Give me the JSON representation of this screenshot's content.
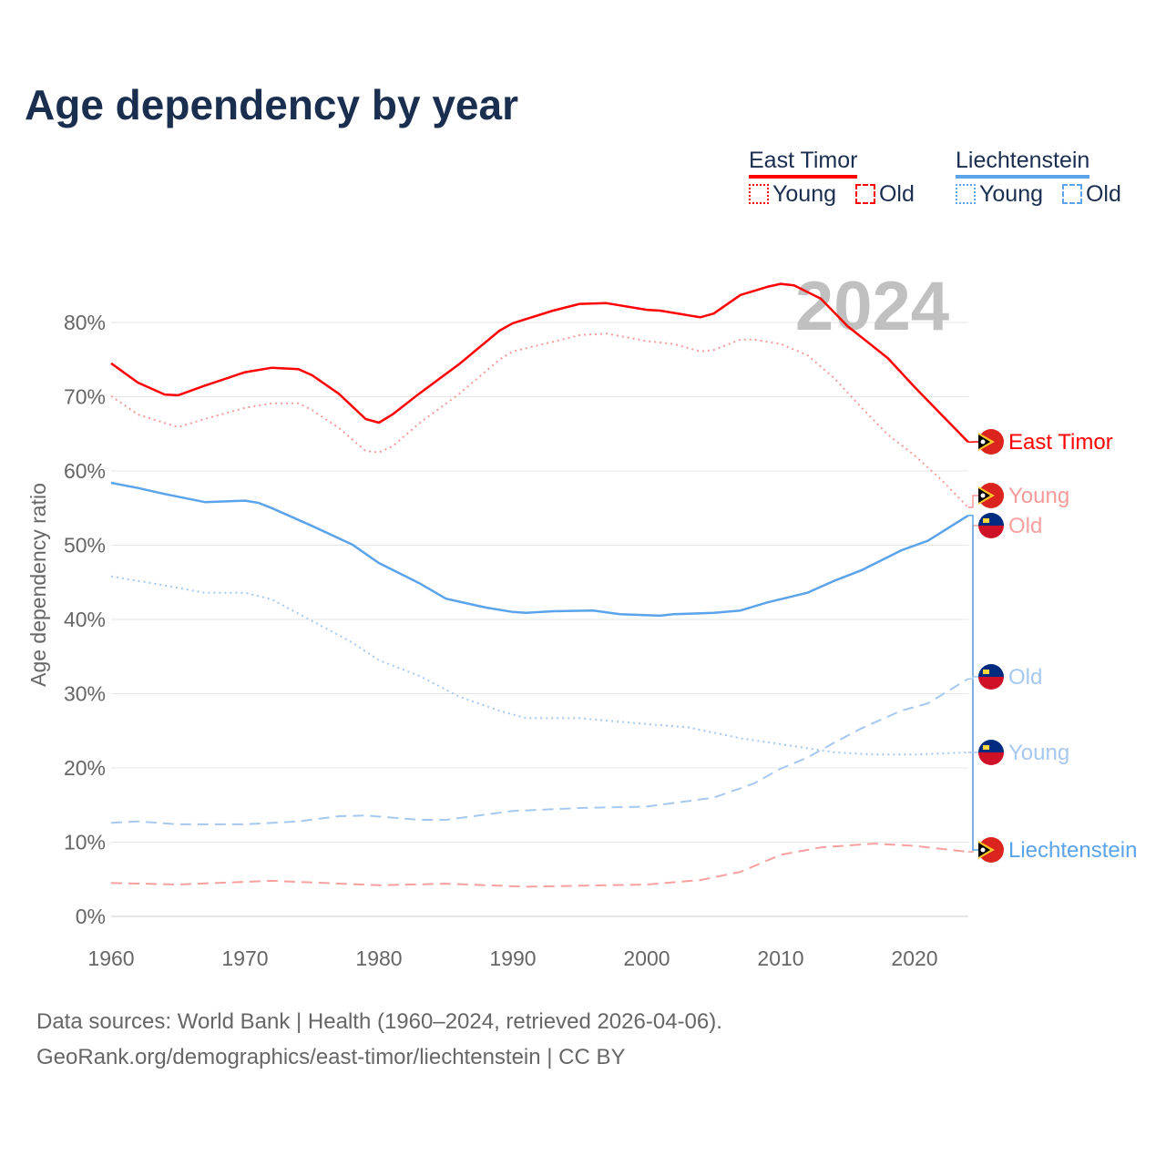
{
  "title": "Age dependency by year",
  "legend": {
    "groups": [
      {
        "name": "East Timor",
        "color": "#ff0000",
        "young": "Young",
        "old": "Old"
      },
      {
        "name": "Liechtenstein",
        "color": "#5ba3ea",
        "young": "Young",
        "old": "Old"
      }
    ]
  },
  "footer": {
    "line1": "Data sources: World Bank | Health (1960–2024, retrieved 2026-04-06).",
    "line2": "GeoRank.org/demographics/east-timor/liechtenstein | CC BY"
  },
  "chart_data": {
    "type": "line",
    "title": "Age dependency by year",
    "xlabel": "",
    "ylabel": "Age dependency ratio",
    "year_watermark": "2024",
    "xlim": [
      1960,
      2024
    ],
    "ylim": [
      0,
      85
    ],
    "x_ticks": [
      "1960",
      "1970",
      "1980",
      "1990",
      "2000",
      "2010",
      "2020"
    ],
    "y_ticks": [
      "0%",
      "10%",
      "20%",
      "30%",
      "40%",
      "50%",
      "60%",
      "70%",
      "80%"
    ],
    "grid": true,
    "series": [
      {
        "name": "East Timor",
        "label": "East Timor",
        "color": "#ff0000",
        "style": "solid",
        "width": 2.5,
        "points": [
          [
            1960,
            74.5
          ],
          [
            1962,
            71.9
          ],
          [
            1964,
            70.3
          ],
          [
            1965,
            70.2
          ],
          [
            1967,
            71.5
          ],
          [
            1970,
            73.3
          ],
          [
            1972,
            73.9
          ],
          [
            1974,
            73.7
          ],
          [
            1975,
            72.9
          ],
          [
            1977,
            70.4
          ],
          [
            1979,
            67
          ],
          [
            1980,
            66.5
          ],
          [
            1981,
            67.6
          ],
          [
            1983,
            70.4
          ],
          [
            1986,
            74.4
          ],
          [
            1989,
            78.9
          ],
          [
            1990,
            79.9
          ],
          [
            1993,
            81.6
          ],
          [
            1995,
            82.5
          ],
          [
            1997,
            82.6
          ],
          [
            2000,
            81.7
          ],
          [
            2001,
            81.6
          ],
          [
            2004,
            80.7
          ],
          [
            2005,
            81.2
          ],
          [
            2007,
            83.7
          ],
          [
            2009,
            84.8
          ],
          [
            2010,
            85.2
          ],
          [
            2011,
            85.0
          ],
          [
            2013,
            83.2
          ],
          [
            2015,
            79.5
          ],
          [
            2018,
            75.2
          ],
          [
            2020,
            71.3
          ],
          [
            2022,
            67.6
          ],
          [
            2024,
            63.9
          ]
        ]
      },
      {
        "name": "East Timor Young",
        "label": "Young",
        "color": "#f59a9a",
        "style": "dotted",
        "width": 2,
        "points": [
          [
            1960,
            70.1
          ],
          [
            1962,
            67.6
          ],
          [
            1965,
            65.9
          ],
          [
            1967,
            67
          ],
          [
            1970,
            68.5
          ],
          [
            1972,
            69.1
          ],
          [
            1974,
            69.1
          ],
          [
            1975,
            68.2
          ],
          [
            1977,
            65.8
          ],
          [
            1979,
            62.7
          ],
          [
            1980,
            62.5
          ],
          [
            1981,
            63.3
          ],
          [
            1983,
            66.4
          ],
          [
            1986,
            70.4
          ],
          [
            1989,
            75
          ],
          [
            1990,
            76.1
          ],
          [
            1993,
            77.4
          ],
          [
            1995,
            78.3
          ],
          [
            1997,
            78.5
          ],
          [
            2000,
            77.5
          ],
          [
            2002,
            77.1
          ],
          [
            2004,
            76.1
          ],
          [
            2005,
            76.3
          ],
          [
            2007,
            77.7
          ],
          [
            2008,
            77.7
          ],
          [
            2010,
            77.1
          ],
          [
            2012,
            75.6
          ],
          [
            2014,
            72.5
          ],
          [
            2016,
            68.6
          ],
          [
            2018,
            64.9
          ],
          [
            2020,
            62.1
          ],
          [
            2022,
            58.8
          ],
          [
            2024,
            55.1
          ]
        ]
      },
      {
        "name": "East Timor Old",
        "label": "Old",
        "color": "#f7a0a0",
        "style": "dashed",
        "width": 2,
        "points": [
          [
            1960,
            4.5
          ],
          [
            1965,
            4.3
          ],
          [
            1972,
            4.8
          ],
          [
            1980,
            4.2
          ],
          [
            1985,
            4.4
          ],
          [
            1991,
            4.0
          ],
          [
            2000,
            4.3
          ],
          [
            2004,
            4.9
          ],
          [
            2007,
            6.0
          ],
          [
            2010,
            8.3
          ],
          [
            2013,
            9.3
          ],
          [
            2017,
            9.8
          ],
          [
            2020,
            9.5
          ],
          [
            2024,
            8.7
          ]
        ]
      },
      {
        "name": "Liechtenstein",
        "label": "Liechtenstein",
        "color": "#5ba3ea",
        "style": "solid",
        "width": 2.5,
        "points": [
          [
            1960,
            58.4
          ],
          [
            1962,
            57.7
          ],
          [
            1964,
            56.9
          ],
          [
            1967,
            55.8
          ],
          [
            1970,
            56
          ],
          [
            1971,
            55.7
          ],
          [
            1972,
            55
          ],
          [
            1973,
            54.2
          ],
          [
            1975,
            52.6
          ],
          [
            1978,
            50.1
          ],
          [
            1980,
            47.6
          ],
          [
            1983,
            44.9
          ],
          [
            1985,
            42.8
          ],
          [
            1988,
            41.6
          ],
          [
            1990,
            41
          ],
          [
            1991,
            40.9
          ],
          [
            1993,
            41.1
          ],
          [
            1996,
            41.2
          ],
          [
            1998,
            40.7
          ],
          [
            2001,
            40.5
          ],
          [
            2002,
            40.7
          ],
          [
            2005,
            40.9
          ],
          [
            2007,
            41.2
          ],
          [
            2009,
            42.3
          ],
          [
            2012,
            43.6
          ],
          [
            2014,
            45.2
          ],
          [
            2016,
            46.6
          ],
          [
            2019,
            49.3
          ],
          [
            2021,
            50.6
          ],
          [
            2024,
            54
          ]
        ]
      },
      {
        "name": "Liechtenstein Young",
        "label": "Young",
        "color": "#a6c8f0",
        "style": "dotted",
        "width": 2,
        "points": [
          [
            1960,
            45.8
          ],
          [
            1963,
            44.9
          ],
          [
            1967,
            43.6
          ],
          [
            1970,
            43.6
          ],
          [
            1972,
            42.7
          ],
          [
            1975,
            39.8
          ],
          [
            1978,
            36.9
          ],
          [
            1980,
            34.5
          ],
          [
            1983,
            32.4
          ],
          [
            1986,
            29.6
          ],
          [
            1989,
            27.7
          ],
          [
            1991,
            26.7
          ],
          [
            1995,
            26.7
          ],
          [
            2000,
            25.9
          ],
          [
            2003,
            25.5
          ],
          [
            2007,
            24
          ],
          [
            2010,
            23.2
          ],
          [
            2014,
            22.1
          ],
          [
            2017,
            21.8
          ],
          [
            2020,
            21.8
          ],
          [
            2024,
            22.1
          ]
        ]
      },
      {
        "name": "Liechtenstein Old",
        "label": "Old",
        "color": "#a6c8f0",
        "style": "dashed",
        "width": 2,
        "points": [
          [
            1960,
            12.6
          ],
          [
            1962,
            12.8
          ],
          [
            1965,
            12.4
          ],
          [
            1970,
            12.4
          ],
          [
            1974,
            12.8
          ],
          [
            1977,
            13.5
          ],
          [
            1979,
            13.6
          ],
          [
            1983,
            13
          ],
          [
            1985,
            13
          ],
          [
            1990,
            14.2
          ],
          [
            1995,
            14.6
          ],
          [
            2000,
            14.8
          ],
          [
            2005,
            16
          ],
          [
            2008,
            17.9
          ],
          [
            2010,
            19.9
          ],
          [
            2012,
            21.4
          ],
          [
            2014,
            23.4
          ],
          [
            2016,
            25.3
          ],
          [
            2019,
            27.7
          ],
          [
            2021,
            28.7
          ],
          [
            2024,
            32
          ]
        ]
      }
    ]
  }
}
